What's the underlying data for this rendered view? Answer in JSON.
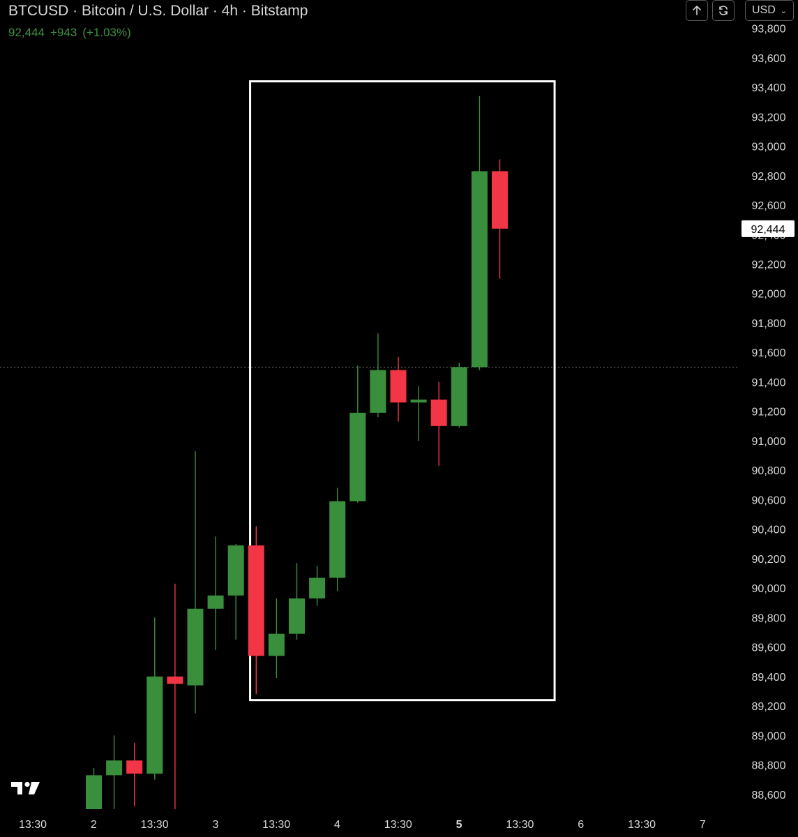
{
  "header": {
    "title": "BTCUSD · Bitcoin / U.S. Dollar · 4h · Bitstamp",
    "last_price": "92,444",
    "change": "+943",
    "change_pct": "(+1.03%)",
    "currency": "USD"
  },
  "controls": {
    "up_icon": "arrow-up-icon",
    "sync_icon": "sync-icon",
    "chevron_icon": "chevron-down-icon"
  },
  "colors": {
    "up": "#3a8f3d",
    "down": "#f23645",
    "text": "#d9d9d9",
    "quote": "#3f9142",
    "box": "#ffffff",
    "bg": "#000000"
  },
  "chart_data": {
    "type": "candlestick",
    "title": "BTCUSD · Bitcoin / U.S. Dollar · 4h · Bitstamp",
    "interval": "4h",
    "exchange": "Bitstamp",
    "currency": "USD",
    "y_ticks": [
      88600,
      88800,
      89000,
      89200,
      89400,
      89600,
      89800,
      90000,
      90200,
      90400,
      90600,
      90800,
      91000,
      91200,
      91400,
      91600,
      91800,
      92000,
      92200,
      92400,
      92600,
      92800,
      93000,
      93200,
      93400,
      93600,
      93800
    ],
    "ylim": [
      88500,
      93850
    ],
    "x_tick_labels": [
      "13:30",
      "2",
      "13:30",
      "3",
      "13:30",
      "4",
      "13:30",
      "5",
      "13:30",
      "6",
      "13:30",
      "7"
    ],
    "x_tick_bold": "5",
    "last_price_label": "92,444",
    "crosshair_price": 91500,
    "candles": [
      {
        "o": 88500,
        "h": 88780,
        "l": 88500,
        "c": 88730
      },
      {
        "o": 88730,
        "h": 89000,
        "l": 88500,
        "c": 88830
      },
      {
        "o": 88830,
        "h": 88950,
        "l": 88520,
        "c": 88740
      },
      {
        "o": 88740,
        "h": 89800,
        "l": 88700,
        "c": 89400
      },
      {
        "o": 89400,
        "h": 90030,
        "l": 88500,
        "c": 89350
      },
      {
        "o": 89340,
        "h": 90930,
        "l": 89150,
        "c": 89860
      },
      {
        "o": 89860,
        "h": 90350,
        "l": 89580,
        "c": 89950
      },
      {
        "o": 89950,
        "h": 90300,
        "l": 89650,
        "c": 90290
      },
      {
        "o": 90290,
        "h": 90420,
        "l": 89280,
        "c": 89540
      },
      {
        "o": 89540,
        "h": 89930,
        "l": 89390,
        "c": 89690
      },
      {
        "o": 89690,
        "h": 90170,
        "l": 89650,
        "c": 89930
      },
      {
        "o": 89930,
        "h": 90150,
        "l": 89880,
        "c": 90070
      },
      {
        "o": 90070,
        "h": 90680,
        "l": 89980,
        "c": 90590
      },
      {
        "o": 90590,
        "h": 91510,
        "l": 90580,
        "c": 91190
      },
      {
        "o": 91190,
        "h": 91730,
        "l": 91160,
        "c": 91480
      },
      {
        "o": 91480,
        "h": 91570,
        "l": 91130,
        "c": 91260
      },
      {
        "o": 91260,
        "h": 91370,
        "l": 91000,
        "c": 91280
      },
      {
        "o": 91280,
        "h": 91400,
        "l": 90830,
        "c": 91100
      },
      {
        "o": 91100,
        "h": 91530,
        "l": 91090,
        "c": 91500
      },
      {
        "o": 91500,
        "h": 93340,
        "l": 91480,
        "c": 92830
      },
      {
        "o": 92830,
        "h": 92910,
        "l": 92100,
        "c": 92440
      }
    ],
    "highlight_box": {
      "from_candle": 7.7,
      "to_candle": 22.7,
      "price_top": 93440,
      "price_bottom": 89240
    }
  }
}
